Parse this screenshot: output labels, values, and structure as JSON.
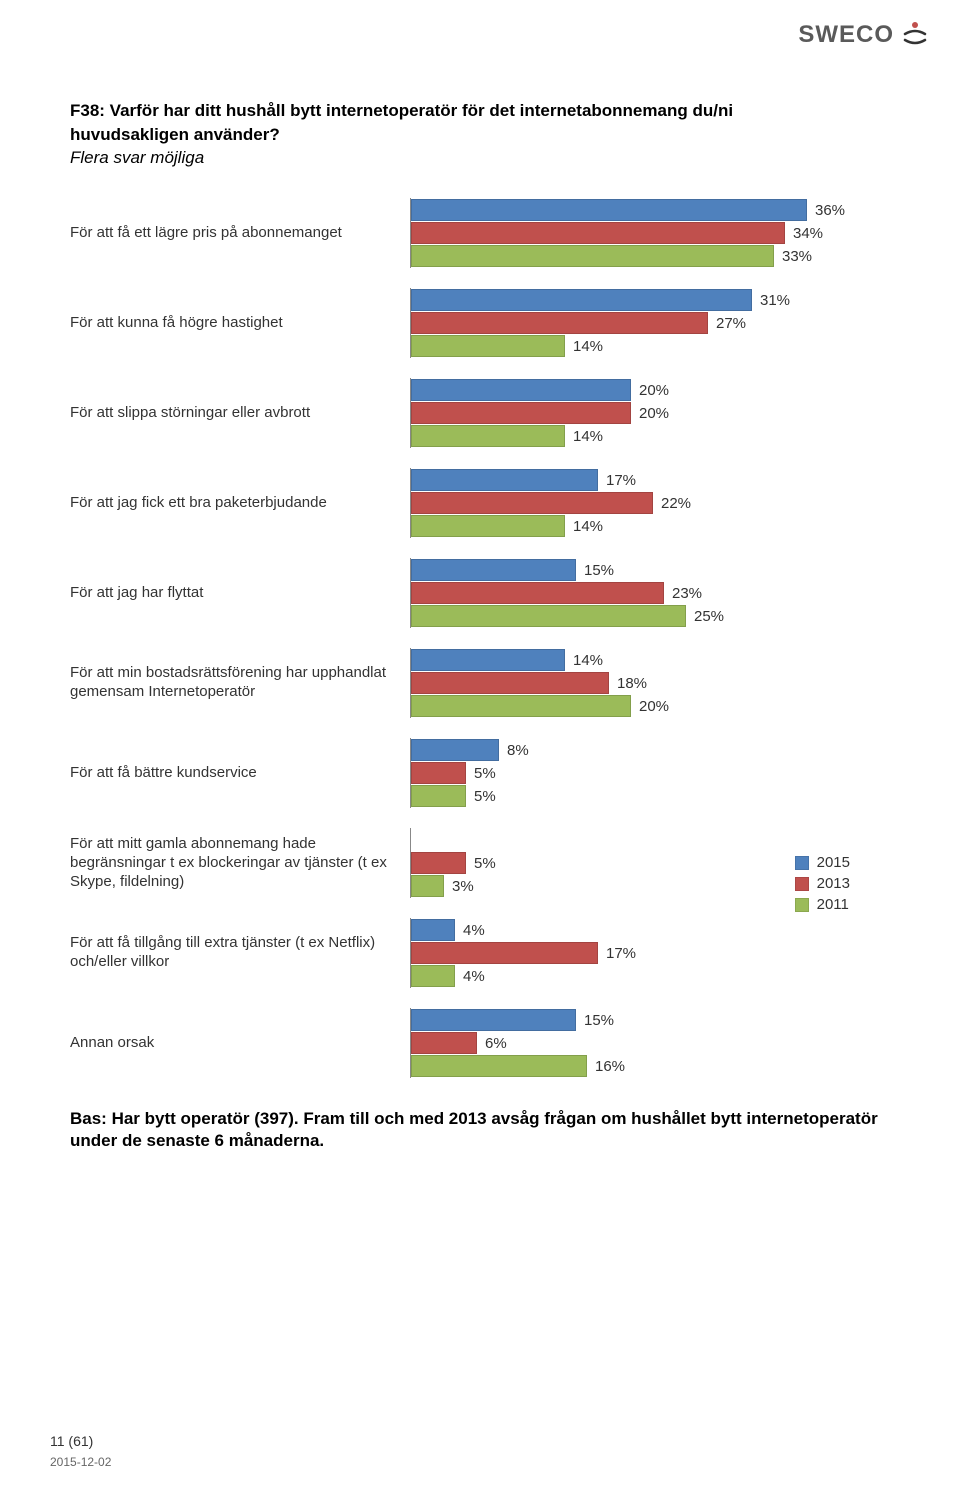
{
  "logo": {
    "text": "SWECO"
  },
  "title_line1": "F38: Varför har ditt hushåll bytt internetoperatör för det internetabonnemang du/ni",
  "title_line2": "huvudsakligen använder?",
  "subtitle": "Flera svar möjliga",
  "chart": {
    "type": "bar",
    "xmax": 40,
    "series": [
      {
        "name": "2015",
        "color": "#4f81bd"
      },
      {
        "name": "2013",
        "color": "#c0504d"
      },
      {
        "name": "2011",
        "color": "#9bbb59"
      }
    ],
    "categories": [
      {
        "label": "För att få ett lägre pris på abonnemanget",
        "values": [
          36,
          34,
          33
        ],
        "pct": [
          "36%",
          "34%",
          "33%"
        ]
      },
      {
        "label": "För att kunna få högre hastighet",
        "values": [
          31,
          27,
          14
        ],
        "pct": [
          "31%",
          "27%",
          "14%"
        ]
      },
      {
        "label": "För att slippa störningar eller avbrott",
        "values": [
          20,
          20,
          14
        ],
        "pct": [
          "20%",
          "20%",
          "14%"
        ]
      },
      {
        "label": "För att jag fick ett bra paketerbjudande",
        "values": [
          17,
          22,
          14
        ],
        "pct": [
          "17%",
          "22%",
          "14%"
        ]
      },
      {
        "label": "För att jag har flyttat",
        "values": [
          15,
          23,
          25
        ],
        "pct": [
          "15%",
          "23%",
          "25%"
        ]
      },
      {
        "label": "För att min bostadsrättsförening har upphandlat gemensam Internetoperatör",
        "values": [
          14,
          18,
          20
        ],
        "pct": [
          "14%",
          "18%",
          "20%"
        ]
      },
      {
        "label": "För att få bättre kundservice",
        "values": [
          8,
          5,
          5
        ],
        "pct": [
          "8%",
          "5%",
          "5%"
        ]
      },
      {
        "label": "För att mitt gamla abonnemang hade begränsningar t ex blockeringar av tjänster (t ex Skype, fildelning)",
        "values": [
          null,
          5,
          3
        ],
        "pct": [
          "",
          "5%",
          "3%"
        ]
      },
      {
        "label": "För att få tillgång till extra tjänster (t ex Netflix) och/eller villkor",
        "values": [
          4,
          17,
          4
        ],
        "pct": [
          "4%",
          "17%",
          "4%"
        ]
      },
      {
        "label": "Annan orsak",
        "values": [
          15,
          6,
          16
        ],
        "pct": [
          "15%",
          "6%",
          "16%"
        ]
      }
    ]
  },
  "footnote": "Bas: Har bytt operatör (397). Fram till och med 2013 avsåg frågan om hushållet bytt internetoperatör under de senaste 6 månaderna.",
  "page_num": "11 (61)",
  "page_date": "2015-12-02"
}
